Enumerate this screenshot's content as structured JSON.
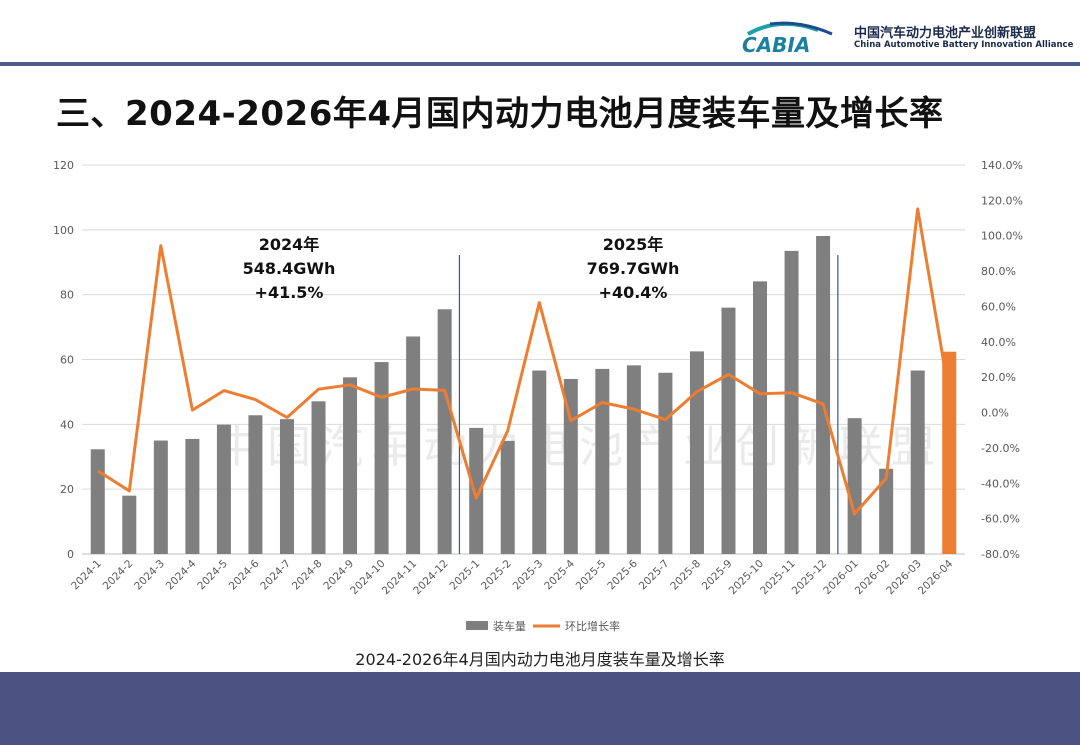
{
  "header": {
    "logo_text": "CABIA",
    "org_cn": "中国汽车动力电池产业创新联盟",
    "org_en": "China Automotive Battery Innovation Alliance"
  },
  "page_title": "三、2024-2026年4月国内动力电池月度装车量及增长率",
  "caption": "2024-2026年4月国内动力电池月度装车量及增长率",
  "watermark": "中国汽车动力电池产业创新联盟",
  "colors": {
    "bar": "#7f7f7f",
    "bar_highlight": "#ed7d31",
    "line": "#ed7d31",
    "divider": "#2f55a4",
    "footer": "#4a5382"
  },
  "chart_data": {
    "type": "bar",
    "categories": [
      "2024-1",
      "2024-2",
      "2024-3",
      "2024-4",
      "2024-5",
      "2024-6",
      "2024-7",
      "2024-8",
      "2024-9",
      "2024-10",
      "2024-11",
      "2024-12",
      "2025-1",
      "2025-2",
      "2025-3",
      "2025-4",
      "2025-5",
      "2025-6",
      "2025-7",
      "2025-8",
      "2025-9",
      "2025-10",
      "2025-11",
      "2025-12",
      "2026-01",
      "2026-02",
      "2026-03",
      "2026-04"
    ],
    "series": [
      {
        "name": "装车量",
        "axis": "left",
        "type": "bar",
        "values": [
          32.3,
          18.0,
          35.0,
          35.5,
          39.9,
          42.8,
          41.6,
          47.1,
          54.5,
          59.2,
          67.1,
          75.5,
          38.9,
          34.9,
          56.6,
          54.0,
          57.1,
          58.2,
          55.9,
          62.5,
          76.0,
          84.1,
          93.5,
          98.1,
          41.9,
          26.3,
          56.6,
          62.4
        ]
      },
      {
        "name": "环比增长率",
        "axis": "right",
        "type": "line",
        "values": [
          -33.0,
          -44.3,
          94.4,
          1.4,
          12.4,
          7.3,
          -2.8,
          13.2,
          15.7,
          8.6,
          13.3,
          12.5,
          -48.4,
          -10.3,
          62.2,
          -4.6,
          5.7,
          1.9,
          -4.0,
          11.8,
          21.6,
          10.6,
          11.2,
          4.9,
          -57.3,
          -37.2,
          115.2,
          10.2
        ]
      }
    ],
    "left_axis": {
      "min": 0,
      "max": 120,
      "step": 20,
      "ticks": [
        "0",
        "20",
        "40",
        "60",
        "80",
        "100",
        "120"
      ]
    },
    "right_axis": {
      "min": -80,
      "max": 140,
      "step": 20,
      "ticks": [
        "-80.0%",
        "-60.0%",
        "-40.0%",
        "-20.0%",
        "0.0%",
        "20.0%",
        "40.0%",
        "60.0%",
        "80.0%",
        "100.0%",
        "120.0%",
        "140.0%"
      ]
    },
    "annotations": [
      {
        "year": "2024年",
        "total": "548.4GWh",
        "growth": "+41.5%"
      },
      {
        "year": "2025年",
        "total": "769.7GWh",
        "growth": "+40.4%"
      }
    ],
    "legend": [
      "装车量",
      "环比增长率"
    ],
    "legend_position": "bottom",
    "grid": true,
    "highlight_last_bar": true
  }
}
